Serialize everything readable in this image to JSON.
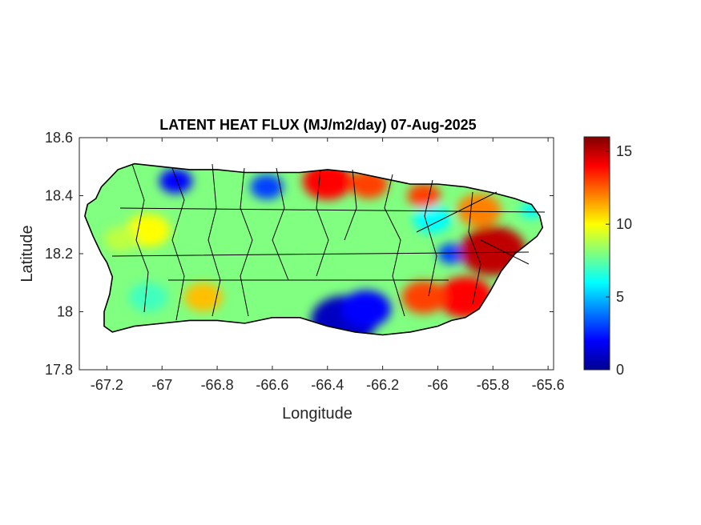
{
  "title": "LATENT HEAT FLUX (MJ/m2/day) 07-Aug-2025",
  "xlabel": "Longitude",
  "ylabel": "Latitude",
  "map_extent": {
    "lon": [
      -67.3,
      -65.58
    ],
    "lat": [
      17.8,
      18.6
    ]
  },
  "x_ticks": [
    {
      "value": -67.2,
      "label": "-67.2"
    },
    {
      "value": -67.0,
      "label": "-67"
    },
    {
      "value": -66.8,
      "label": "-66.8"
    },
    {
      "value": -66.6,
      "label": "-66.6"
    },
    {
      "value": -66.4,
      "label": "-66.4"
    },
    {
      "value": -66.2,
      "label": "-66.2"
    },
    {
      "value": -66.0,
      "label": "-66"
    },
    {
      "value": -65.8,
      "label": "-65.8"
    },
    {
      "value": -65.6,
      "label": "-65.6"
    }
  ],
  "y_ticks": [
    {
      "value": 18.6,
      "label": "18.6"
    },
    {
      "value": 18.4,
      "label": "18.4"
    },
    {
      "value": 18.2,
      "label": "18.2"
    },
    {
      "value": 18.0,
      "label": "18"
    },
    {
      "value": 17.8,
      "label": "17.8"
    }
  ],
  "colorbar": {
    "colormap": "jet",
    "range": [
      0,
      16
    ],
    "ticks": [
      {
        "value": 0,
        "label": "0"
      },
      {
        "value": 5,
        "label": "5"
      },
      {
        "value": 10,
        "label": "10"
      },
      {
        "value": 15,
        "label": "15"
      }
    ]
  },
  "colors": {
    "outline": "#000000",
    "axes": "#262626",
    "background": "#ffffff",
    "jet_stops": [
      "#00008f",
      "#0000ff",
      "#00ffff",
      "#ffff00",
      "#ff0000",
      "#800000"
    ]
  },
  "island_outline": [
    [
      -67.27,
      18.37
    ],
    [
      -67.24,
      18.39
    ],
    [
      -67.22,
      18.43
    ],
    [
      -67.19,
      18.46
    ],
    [
      -67.16,
      18.49
    ],
    [
      -67.1,
      18.51
    ],
    [
      -67.0,
      18.5
    ],
    [
      -66.9,
      18.49
    ],
    [
      -66.8,
      18.49
    ],
    [
      -66.7,
      18.48
    ],
    [
      -66.6,
      18.48
    ],
    [
      -66.5,
      18.48
    ],
    [
      -66.4,
      18.49
    ],
    [
      -66.3,
      18.48
    ],
    [
      -66.2,
      18.46
    ],
    [
      -66.1,
      18.44
    ],
    [
      -66.0,
      18.44
    ],
    [
      -65.9,
      18.43
    ],
    [
      -65.8,
      18.41
    ],
    [
      -65.72,
      18.39
    ],
    [
      -65.66,
      18.37
    ],
    [
      -65.63,
      18.33
    ],
    [
      -65.62,
      18.29
    ],
    [
      -65.64,
      18.26
    ],
    [
      -65.68,
      18.23
    ],
    [
      -65.72,
      18.2
    ],
    [
      -65.77,
      18.14
    ],
    [
      -65.81,
      18.07
    ],
    [
      -65.85,
      18.01
    ],
    [
      -65.9,
      17.98
    ],
    [
      -65.95,
      17.97
    ],
    [
      -66.0,
      17.95
    ],
    [
      -66.1,
      17.93
    ],
    [
      -66.2,
      17.92
    ],
    [
      -66.3,
      17.93
    ],
    [
      -66.4,
      17.95
    ],
    [
      -66.5,
      17.98
    ],
    [
      -66.6,
      17.98
    ],
    [
      -66.7,
      17.96
    ],
    [
      -66.8,
      17.97
    ],
    [
      -66.9,
      17.97
    ],
    [
      -67.0,
      17.96
    ],
    [
      -67.1,
      17.95
    ],
    [
      -67.18,
      17.93
    ],
    [
      -67.21,
      17.95
    ],
    [
      -67.21,
      18.0
    ],
    [
      -67.19,
      18.06
    ],
    [
      -67.18,
      18.12
    ],
    [
      -67.2,
      18.17
    ],
    [
      -67.22,
      18.2
    ],
    [
      -67.25,
      18.26
    ],
    [
      -67.28,
      18.33
    ]
  ],
  "flux_regions": [
    {
      "lon": -66.34,
      "lat": 17.97,
      "value": 1,
      "r": 0.12
    },
    {
      "lon": -66.26,
      "lat": 18.01,
      "value": 2,
      "r": 0.09
    },
    {
      "lon": -66.95,
      "lat": 18.45,
      "value": 2,
      "r": 0.06
    },
    {
      "lon": -66.62,
      "lat": 18.43,
      "value": 3,
      "r": 0.06
    },
    {
      "lon": -65.95,
      "lat": 18.2,
      "value": 3,
      "r": 0.05
    },
    {
      "lon": -66.02,
      "lat": 18.32,
      "value": 6,
      "r": 0.07
    },
    {
      "lon": -65.66,
      "lat": 18.35,
      "value": 6,
      "r": 0.04
    },
    {
      "lon": -66.4,
      "lat": 18.45,
      "value": 14,
      "r": 0.09
    },
    {
      "lon": -66.25,
      "lat": 18.44,
      "value": 13,
      "r": 0.07
    },
    {
      "lon": -66.05,
      "lat": 18.4,
      "value": 13,
      "r": 0.06
    },
    {
      "lon": -65.8,
      "lat": 18.21,
      "value": 15,
      "r": 0.12
    },
    {
      "lon": -65.9,
      "lat": 18.05,
      "value": 14,
      "r": 0.1
    },
    {
      "lon": -66.05,
      "lat": 18.05,
      "value": 13,
      "r": 0.08
    },
    {
      "lon": -65.85,
      "lat": 18.35,
      "value": 12,
      "r": 0.08
    },
    {
      "lon": -67.05,
      "lat": 18.28,
      "value": 10,
      "r": 0.08
    },
    {
      "lon": -67.15,
      "lat": 18.25,
      "value": 9,
      "r": 0.06
    },
    {
      "lon": -66.85,
      "lat": 18.05,
      "value": 11,
      "r": 0.07
    },
    {
      "lon": -66.7,
      "lat": 18.25,
      "value": 8,
      "r": 0.1
    },
    {
      "lon": -66.5,
      "lat": 18.2,
      "value": 8,
      "r": 0.1
    },
    {
      "lon": -67.05,
      "lat": 18.05,
      "value": 7,
      "r": 0.07
    }
  ]
}
